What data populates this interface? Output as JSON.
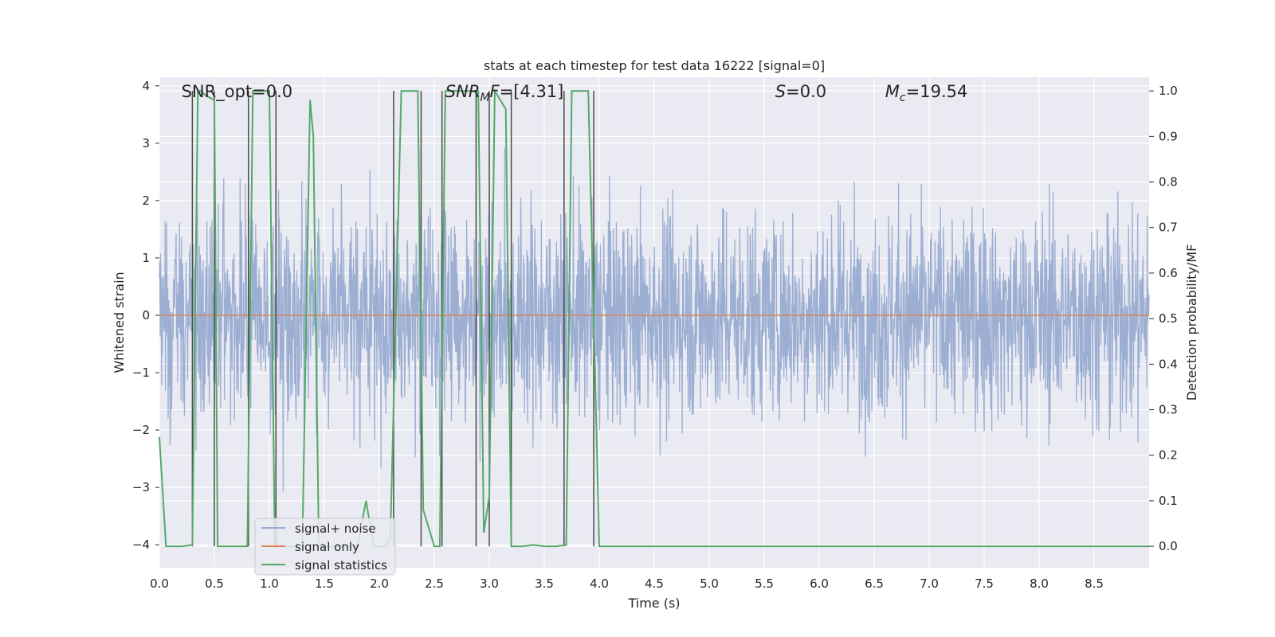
{
  "chart_data": {
    "type": "line",
    "title": "stats at each timestep for test data 16222 [signal=0]",
    "xlabel": "Time (s)",
    "ylabel_left": "Whitened strain",
    "ylabel_right": "Detection probability/MF",
    "xlim": [
      0.0,
      9.0
    ],
    "ylim_left": [
      -4.4,
      4.15
    ],
    "ylim_right": [
      -0.047,
      1.03
    ],
    "x_ticks": [
      "0.0",
      "0.5",
      "1.0",
      "1.5",
      "2.0",
      "2.5",
      "3.0",
      "3.5",
      "4.0",
      "4.5",
      "5.0",
      "5.5",
      "6.0",
      "6.5",
      "7.0",
      "7.5",
      "8.0",
      "8.5"
    ],
    "y_left_ticks": [
      "4",
      "3",
      "2",
      "1",
      "0",
      "−1",
      "−2",
      "−3",
      "−4"
    ],
    "y_right_ticks": [
      "1.0",
      "0.9",
      "0.8",
      "0.7",
      "0.6",
      "0.5",
      "0.4",
      "0.3",
      "0.2",
      "0.1",
      "0.0"
    ],
    "grid": true,
    "annotations": [
      {
        "text": "SNR_opt=0.0",
        "x": 0.2
      },
      {
        "text": "SNR_MF=[4.31]",
        "x": 2.6
      },
      {
        "text": "S=0.0",
        "x": 5.6
      },
      {
        "text": "M_c=19.54",
        "x": 6.6
      }
    ],
    "legend": {
      "position": "lower-left",
      "entries": [
        "signal+ noise",
        "signal only",
        "signal statistics"
      ]
    },
    "colors": {
      "noise": "#98acd1",
      "signal_only": "#dd8452",
      "statistics": "#55a868",
      "vlines": "#4a4a4a",
      "background": "#eaeaf2",
      "grid": "#ffffff"
    },
    "series": [
      {
        "name": "signal+ noise",
        "description_range": [
          -4.0,
          3.85
        ],
        "typical_envelope": [
          -2.0,
          2.4
        ]
      },
      {
        "name": "signal only",
        "x": [
          0.0,
          9.0
        ],
        "y": [
          0.0,
          0.0
        ]
      },
      {
        "name": "signal statistics",
        "x": [
          0.0,
          0.06,
          0.1,
          0.2,
          0.3,
          0.35,
          0.38,
          0.42,
          0.5,
          0.53,
          0.58,
          0.65,
          0.8,
          0.85,
          0.88,
          1.0,
          1.05,
          1.08,
          1.12,
          1.3,
          1.37,
          1.4,
          1.45,
          1.6,
          1.7,
          1.8,
          1.88,
          1.9,
          1.95,
          2.05,
          2.1,
          2.2,
          2.35,
          2.4,
          2.45,
          2.5,
          2.55,
          2.6,
          2.7,
          2.9,
          2.95,
          3.0,
          3.05,
          3.15,
          3.2,
          3.3,
          3.4,
          3.5,
          3.6,
          3.7,
          3.75,
          3.9,
          4.0,
          4.05,
          4.2,
          5.0,
          6.0,
          7.0,
          8.0,
          9.0
        ],
        "y": [
          0.24,
          0.0,
          0.0,
          0.0,
          0.003,
          1.0,
          1.0,
          0.99,
          0.98,
          0.0,
          0.0,
          0.0,
          0.0,
          1.0,
          1.0,
          1.0,
          0.0,
          0.0,
          0.0,
          0.0,
          0.98,
          0.9,
          0.0,
          0.0,
          0.0,
          0.0,
          0.1,
          0.07,
          0.0,
          0.0,
          0.015,
          1.0,
          1.0,
          0.08,
          0.04,
          0.0,
          0.0,
          1.0,
          1.0,
          1.0,
          0.03,
          0.11,
          1.0,
          0.96,
          0.0,
          0.0,
          0.003,
          0.0,
          0.0,
          0.003,
          1.0,
          1.0,
          0.0,
          0.0,
          0.0,
          0.0,
          0.0,
          0.0,
          0.0,
          0.0
        ]
      },
      {
        "name": "peak markers",
        "x": [
          0.3,
          0.5,
          0.81,
          1.06,
          2.13,
          2.38,
          2.57,
          2.88,
          3.0,
          3.2,
          3.68,
          3.95
        ]
      }
    ]
  }
}
